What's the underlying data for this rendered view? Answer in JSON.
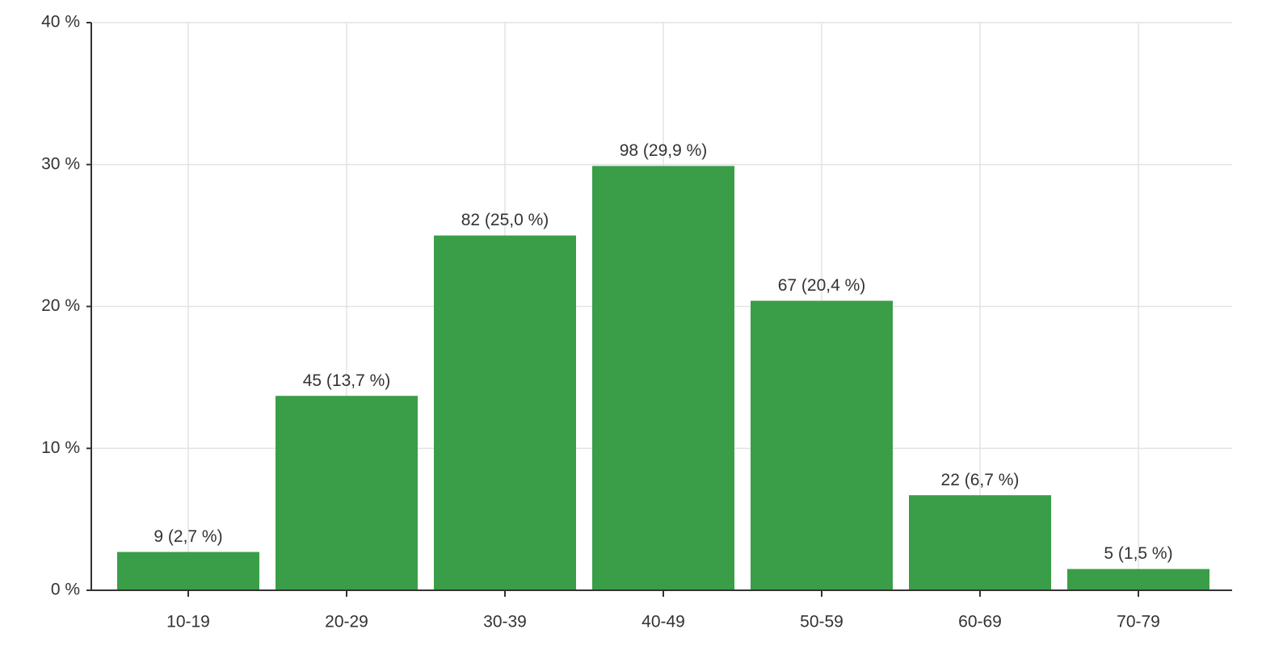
{
  "chart_data": {
    "type": "bar",
    "categories": [
      "10-19",
      "20-29",
      "30-39",
      "40-49",
      "50-59",
      "60-69",
      "70-79"
    ],
    "values": [
      2.7,
      13.7,
      25.0,
      29.9,
      20.4,
      6.7,
      1.5
    ],
    "value_labels": [
      "9 (2,7 %)",
      "45 (13,7 %)",
      "82 (25,0 %)",
      "98 (29,9 %)",
      "67 (20,4 %)",
      "22 (6,7 %)",
      "5 (1,5 %)"
    ],
    "color": "#3a9e48",
    "ylim": [
      0,
      40
    ],
    "yticks": [
      {
        "value": 0,
        "label": "0 %"
      },
      {
        "value": 10,
        "label": "10 %"
      },
      {
        "value": 20,
        "label": "20 %"
      },
      {
        "value": 30,
        "label": "30 %"
      },
      {
        "value": 40,
        "label": "40 %"
      }
    ],
    "grid": true
  }
}
